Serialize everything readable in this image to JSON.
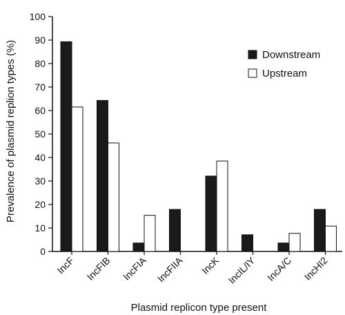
{
  "chart_data": {
    "type": "bar",
    "title": "",
    "xlabel": "Plasmid replicon type present",
    "ylabel": "Prevalence of plasmid replion types (%)",
    "ylim": [
      0,
      100
    ],
    "yticks": [
      0,
      10,
      20,
      30,
      40,
      50,
      60,
      70,
      80,
      90,
      100
    ],
    "categories": [
      "IncF",
      "IncFIB",
      "IncFIA",
      "IncFIIA",
      "IncK",
      "IncIL/IY",
      "IncA/C",
      "IncHI2"
    ],
    "series": [
      {
        "name": "Downstream",
        "color": "#1a1a1a",
        "values": [
          89.3,
          64.3,
          3.6,
          17.9,
          32.1,
          7.1,
          3.6,
          17.9
        ]
      },
      {
        "name": "Upstream",
        "color": "#ffffff",
        "values": [
          61.5,
          46.2,
          15.4,
          0,
          38.5,
          0,
          7.7,
          10.8
        ]
      }
    ],
    "legend": "top-right",
    "grid": false
  }
}
